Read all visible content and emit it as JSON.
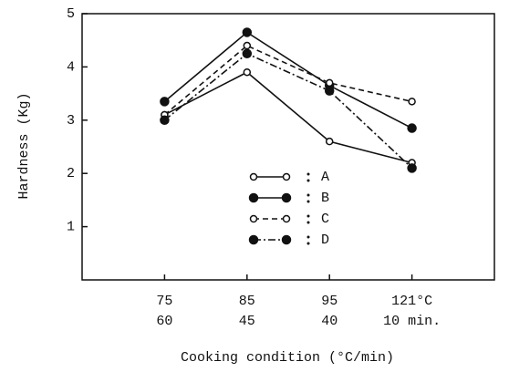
{
  "chart_data": {
    "type": "line",
    "xlabel": "Cooking condition (°C/min)",
    "ylabel": "Hardness (Kg)",
    "categories": [
      [
        "75",
        "60"
      ],
      [
        "85",
        "45"
      ],
      [
        "95",
        "40"
      ],
      [
        "121°C",
        "10 min."
      ]
    ],
    "series": [
      {
        "name": "A",
        "color": "#111111",
        "marker": "open",
        "dash": "solid",
        "values": [
          3.1,
          3.9,
          2.6,
          2.2
        ]
      },
      {
        "name": "B",
        "color": "#111111",
        "marker": "filled",
        "dash": "solid",
        "values": [
          3.35,
          4.65,
          3.65,
          2.85
        ]
      },
      {
        "name": "C",
        "color": "#111111",
        "marker": "open",
        "dash": "dashed",
        "values": [
          3.1,
          4.4,
          3.7,
          3.35
        ]
      },
      {
        "name": "D",
        "color": "#111111",
        "marker": "filled",
        "dash": "dashdot",
        "values": [
          3.0,
          4.25,
          3.55,
          2.1
        ]
      }
    ],
    "ylim": [
      0,
      5
    ],
    "yticks": [
      1,
      2,
      3,
      4,
      5
    ]
  }
}
